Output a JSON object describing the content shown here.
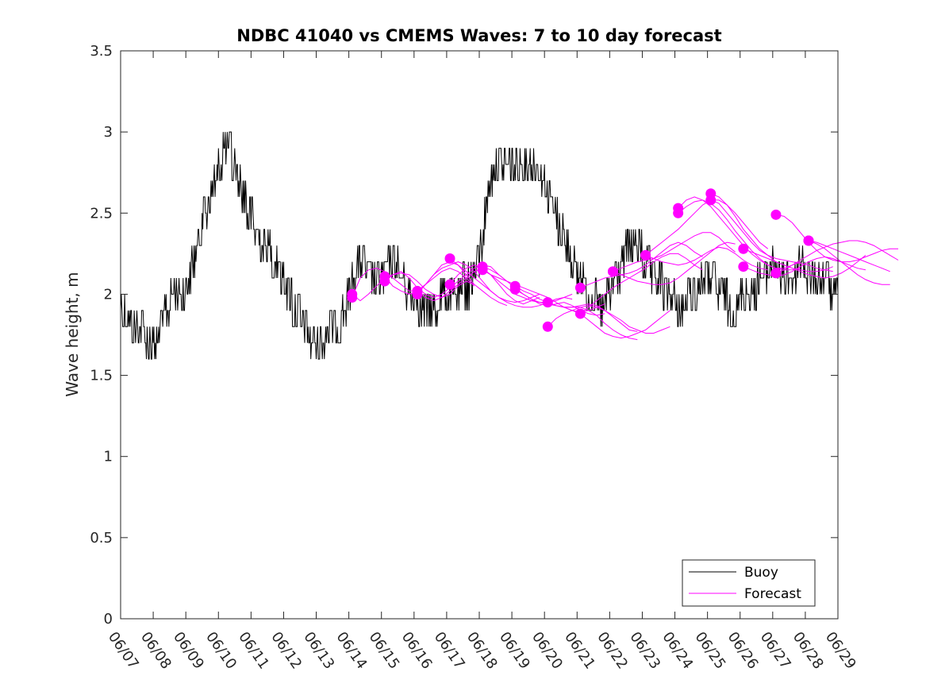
{
  "chart_data": {
    "type": "line",
    "title": "NDBC 41040 vs CMEMS Waves: 7 to 10 day forecast",
    "xlabel": "",
    "ylabel": "Wave height, m",
    "xlim": [
      "06/07",
      "06/29"
    ],
    "ylim": [
      0,
      3.5
    ],
    "yticks": [
      0,
      0.5,
      1,
      1.5,
      2,
      2.5,
      3,
      3.5
    ],
    "ytick_labels": [
      "0",
      "0.5",
      "1",
      "1.5",
      "2",
      "2.5",
      "3",
      "3.5"
    ],
    "xtick_labels": [
      "06/07",
      "06/08",
      "06/09",
      "06/10",
      "06/11",
      "06/12",
      "06/13",
      "06/14",
      "06/15",
      "06/16",
      "06/17",
      "06/18",
      "06/19",
      "06/20",
      "06/21",
      "06/22",
      "06/23",
      "06/24",
      "06/25",
      "06/26",
      "06/27",
      "06/28",
      "06/29"
    ],
    "grid": false,
    "legend": {
      "placement": "bottom-right",
      "entries": [
        {
          "label": "Buoy",
          "color": "#000000"
        },
        {
          "label": "Forecast",
          "color": "#ff00ff"
        }
      ]
    },
    "buoy": {
      "name": "Buoy",
      "color": "#000000",
      "days": [
        0,
        0.25,
        0.5,
        0.75,
        1,
        1.25,
        1.5,
        1.75,
        2,
        2.25,
        2.5,
        2.75,
        3,
        3.25,
        3.5,
        3.75,
        4,
        4.25,
        4.5,
        4.75,
        5,
        5.25,
        5.5,
        5.75,
        6,
        6.25,
        6.5,
        6.75,
        7,
        7.25,
        7.5,
        7.75,
        8,
        8.25,
        8.5,
        8.75,
        9,
        9.25,
        9.5,
        9.75,
        10,
        10.25,
        10.5,
        10.75,
        11,
        11.25,
        11.5,
        11.75,
        12,
        12.25,
        12.5,
        12.75,
        13,
        13.25,
        13.5,
        13.75,
        14,
        14.25,
        14.5,
        14.75,
        15,
        15.25,
        15.5,
        15.75,
        16,
        16.25,
        16.5,
        16.75,
        17,
        17.25,
        17.5,
        17.75,
        18,
        18.25,
        18.5,
        18.75,
        19,
        19.25,
        19.5,
        19.75,
        20,
        20.25,
        20.5,
        20.75,
        21,
        21.25,
        21.5,
        21.75,
        22
      ],
      "values": [
        1.9,
        1.85,
        1.8,
        1.75,
        1.65,
        1.8,
        1.95,
        2.0,
        2.05,
        2.2,
        2.45,
        2.6,
        2.75,
        2.95,
        2.8,
        2.6,
        2.5,
        2.35,
        2.3,
        2.2,
        2.1,
        1.95,
        1.85,
        1.75,
        1.7,
        1.75,
        1.8,
        1.85,
        2.0,
        2.2,
        2.15,
        2.05,
        2.1,
        2.2,
        2.15,
        2.05,
        2.0,
        1.9,
        1.9,
        1.95,
        1.95,
        2.0,
        2.05,
        2.05,
        2.2,
        2.6,
        2.8,
        2.8,
        2.8,
        2.75,
        2.8,
        2.8,
        2.7,
        2.55,
        2.4,
        2.3,
        2.1,
        2.05,
        2.0,
        1.9,
        2.0,
        2.1,
        2.25,
        2.3,
        2.25,
        2.15,
        2.1,
        2.0,
        1.95,
        1.9,
        2.0,
        2.05,
        2.1,
        2.05,
        2.0,
        1.9,
        1.95,
        2.0,
        2.05,
        2.1,
        2.2,
        2.1,
        2.1,
        2.15,
        2.15,
        2.1,
        2.1,
        2.05,
        2.0
      ]
    },
    "forecasts": {
      "name": "Forecast",
      "color": "#ff00ff",
      "series": [
        {
          "start": 7.1,
          "values": [
            1.98,
            2.1,
            2.15,
            2.16,
            2.14,
            2.1,
            2.06,
            2.02,
            2.02,
            2.06,
            2.1,
            2.14,
            2.16,
            2.14,
            2.1,
            2.05
          ]
        },
        {
          "start": 7.1,
          "values": [
            2.0,
            1.96,
            2.0,
            2.05,
            2.1,
            2.12,
            2.13,
            2.12,
            2.08,
            2.03,
            2.0,
            1.98,
            2.0,
            2.05,
            2.08,
            2.06
          ]
        },
        {
          "start": 8.1,
          "values": [
            2.08,
            2.12,
            2.14,
            2.1,
            2.04,
            2.0,
            1.98,
            2.0,
            2.04,
            2.08,
            2.12,
            2.16,
            2.18,
            2.17,
            2.12,
            2.08
          ]
        },
        {
          "start": 8.1,
          "values": [
            2.11,
            2.05,
            2.02,
            2.0,
            2.02,
            2.06,
            2.12,
            2.18,
            2.2,
            2.18,
            2.12,
            2.06,
            2.02,
            1.98,
            1.95,
            1.93
          ]
        },
        {
          "start": 9.1,
          "values": [
            2.02,
            1.98,
            1.96,
            1.98,
            2.02,
            2.06,
            2.1,
            2.14,
            2.16,
            2.12,
            2.06,
            2.0,
            1.96,
            1.94,
            1.96,
            1.98
          ]
        },
        {
          "start": 9.1,
          "values": [
            2.0,
            2.06,
            2.12,
            2.16,
            2.18,
            2.2,
            2.18,
            2.14,
            2.08,
            2.02,
            1.98,
            1.96,
            1.95,
            1.96,
            1.98,
            2.0
          ]
        },
        {
          "start": 10.1,
          "values": [
            2.06,
            2.12,
            2.16,
            2.18,
            2.16,
            2.12,
            2.08,
            2.04,
            2.0,
            1.98,
            1.96,
            1.95,
            1.95,
            1.96,
            1.98,
            2.0
          ]
        },
        {
          "start": 10.1,
          "values": [
            2.22,
            2.18,
            2.14,
            2.1,
            2.06,
            2.02,
            1.98,
            1.95,
            1.93,
            1.92,
            1.92,
            1.93,
            1.95,
            1.97,
            1.98,
            1.97
          ]
        },
        {
          "start": 11.1,
          "values": [
            2.15,
            2.12,
            2.1,
            2.08,
            2.06,
            2.04,
            2.02,
            2.0,
            1.98,
            1.95,
            1.92,
            1.9,
            1.89,
            1.9,
            1.92,
            1.94
          ]
        },
        {
          "start": 11.1,
          "values": [
            2.17,
            2.15,
            2.12,
            2.08,
            2.04,
            2.0,
            1.97,
            1.94,
            1.93,
            1.94,
            1.95,
            1.93,
            1.9,
            1.88,
            1.87,
            1.88
          ]
        },
        {
          "start": 12.1,
          "values": [
            2.05,
            2.02,
            2.0,
            1.97,
            1.95,
            1.93,
            1.92,
            1.92,
            1.93,
            1.94,
            1.93,
            1.9,
            1.86,
            1.82,
            1.78,
            1.77
          ]
        },
        {
          "start": 12.1,
          "values": [
            2.03,
            2.0,
            1.97,
            1.95,
            1.94,
            1.93,
            1.92,
            1.92,
            1.92,
            1.9,
            1.87,
            1.82,
            1.78,
            1.75,
            1.73,
            1.72
          ]
        },
        {
          "start": 13.1,
          "values": [
            1.8,
            1.85,
            1.88,
            1.9,
            1.92,
            1.93,
            1.92,
            1.9,
            1.87,
            1.84,
            1.8,
            1.78,
            1.76,
            1.76,
            1.78,
            1.8
          ]
        },
        {
          "start": 13.1,
          "values": [
            1.95,
            1.93,
            1.92,
            1.9,
            1.88,
            1.84,
            1.8,
            1.76,
            1.74,
            1.73,
            1.74,
            1.76,
            1.78,
            1.82,
            1.86,
            1.9
          ]
        },
        {
          "start": 14.1,
          "values": [
            1.88,
            1.92,
            1.96,
            2.0,
            2.04,
            2.07,
            2.1,
            2.13,
            2.16,
            2.2,
            2.23,
            2.25,
            2.25,
            2.22,
            2.18,
            2.15
          ]
        },
        {
          "start": 14.1,
          "values": [
            2.04,
            2.06,
            2.08,
            2.1,
            2.11,
            2.12,
            2.13,
            2.15,
            2.18,
            2.22,
            2.26,
            2.3,
            2.32,
            2.3,
            2.26,
            2.23
          ]
        },
        {
          "start": 15.1,
          "values": [
            2.14,
            2.12,
            2.1,
            2.08,
            2.07,
            2.06,
            2.06,
            2.07,
            2.1,
            2.14,
            2.18,
            2.22,
            2.26,
            2.3,
            2.32,
            2.31
          ]
        },
        {
          "start": 15.1,
          "values": [
            2.14,
            2.16,
            2.18,
            2.2,
            2.21,
            2.22,
            2.24,
            2.27,
            2.3,
            2.33,
            2.36,
            2.38,
            2.38,
            2.35,
            2.3,
            2.26
          ]
        },
        {
          "start": 16.1,
          "values": [
            2.24,
            2.28,
            2.32,
            2.36,
            2.4,
            2.45,
            2.5,
            2.55,
            2.58,
            2.58,
            2.55,
            2.5,
            2.44,
            2.38,
            2.32,
            2.28
          ]
        },
        {
          "start": 16.1,
          "values": [
            2.24,
            2.22,
            2.2,
            2.19,
            2.18,
            2.19,
            2.21,
            2.24,
            2.27,
            2.29,
            2.28,
            2.25,
            2.21,
            2.18,
            2.16,
            2.15
          ]
        },
        {
          "start": 17.1,
          "values": [
            2.53,
            2.58,
            2.6,
            2.58,
            2.54,
            2.48,
            2.42,
            2.36,
            2.3,
            2.25,
            2.21,
            2.18,
            2.16,
            2.15,
            2.15,
            2.16
          ]
        },
        {
          "start": 17.1,
          "values": [
            2.5,
            2.54,
            2.57,
            2.58,
            2.56,
            2.52,
            2.46,
            2.39,
            2.33,
            2.27,
            2.22,
            2.18,
            2.16,
            2.16,
            2.18,
            2.2
          ]
        },
        {
          "start": 18.1,
          "values": [
            2.62,
            2.6,
            2.55,
            2.48,
            2.4,
            2.34,
            2.28,
            2.24,
            2.2,
            2.18,
            2.16,
            2.15,
            2.14,
            2.14,
            2.15,
            2.17
          ]
        },
        {
          "start": 18.1,
          "values": [
            2.58,
            2.56,
            2.5,
            2.44,
            2.38,
            2.32,
            2.27,
            2.24,
            2.22,
            2.21,
            2.2,
            2.19,
            2.18,
            2.16,
            2.15,
            2.14
          ]
        },
        {
          "start": 19.1,
          "values": [
            2.28,
            2.26,
            2.24,
            2.22,
            2.2,
            2.18,
            2.16,
            2.14,
            2.12,
            2.11,
            2.1,
            2.11,
            2.13,
            2.16,
            2.2,
            2.24
          ]
        },
        {
          "start": 19.1,
          "values": [
            2.17,
            2.15,
            2.13,
            2.12,
            2.11,
            2.12,
            2.14,
            2.17,
            2.2,
            2.22,
            2.23,
            2.22,
            2.2,
            2.18,
            2.16,
            2.15
          ]
        },
        {
          "start": 20.1,
          "values": [
            2.49,
            2.48,
            2.44,
            2.38,
            2.32,
            2.27,
            2.23,
            2.21,
            2.2,
            2.2,
            2.21,
            2.23,
            2.25,
            2.27,
            2.28,
            2.28
          ]
        },
        {
          "start": 20.1,
          "values": [
            2.13,
            2.15,
            2.18,
            2.21,
            2.24,
            2.27,
            2.29,
            2.31,
            2.32,
            2.33,
            2.33,
            2.32,
            2.3,
            2.27,
            2.24,
            2.21
          ]
        },
        {
          "start": 21.1,
          "values": [
            2.33,
            2.31,
            2.28,
            2.24,
            2.2,
            2.16,
            2.12,
            2.09,
            2.07,
            2.06,
            2.06
          ]
        },
        {
          "start": 21.1,
          "values": [
            2.33,
            2.32,
            2.3,
            2.28,
            2.26,
            2.24,
            2.22,
            2.2,
            2.18,
            2.16,
            2.14
          ]
        }
      ]
    }
  }
}
